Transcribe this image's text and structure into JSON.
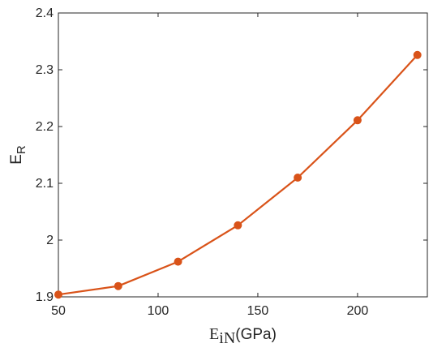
{
  "chart_data": {
    "type": "line",
    "xlabel": {
      "main": "E",
      "sub": "iN",
      "suffix": "(GPa)"
    },
    "ylabel": {
      "main": "E",
      "sub": "R"
    },
    "xlim": [
      50,
      235
    ],
    "ylim": [
      1.9,
      2.4
    ],
    "xticks": [
      50,
      100,
      150,
      200
    ],
    "xtick_labels": [
      "50",
      "100",
      "150",
      "200"
    ],
    "yticks": [
      1.9,
      2.0,
      2.1,
      2.2,
      2.3,
      2.4
    ],
    "ytick_labels": [
      "1.9",
      "2",
      "2.1",
      "2.2",
      "2.3",
      "2.4"
    ],
    "grid": false,
    "series": [
      {
        "color": "#d95319",
        "marker": "circle",
        "x": [
          50,
          80,
          110,
          140,
          170,
          200,
          230
        ],
        "y": [
          1.904,
          1.919,
          1.962,
          2.026,
          2.11,
          2.211,
          2.326
        ]
      }
    ]
  }
}
